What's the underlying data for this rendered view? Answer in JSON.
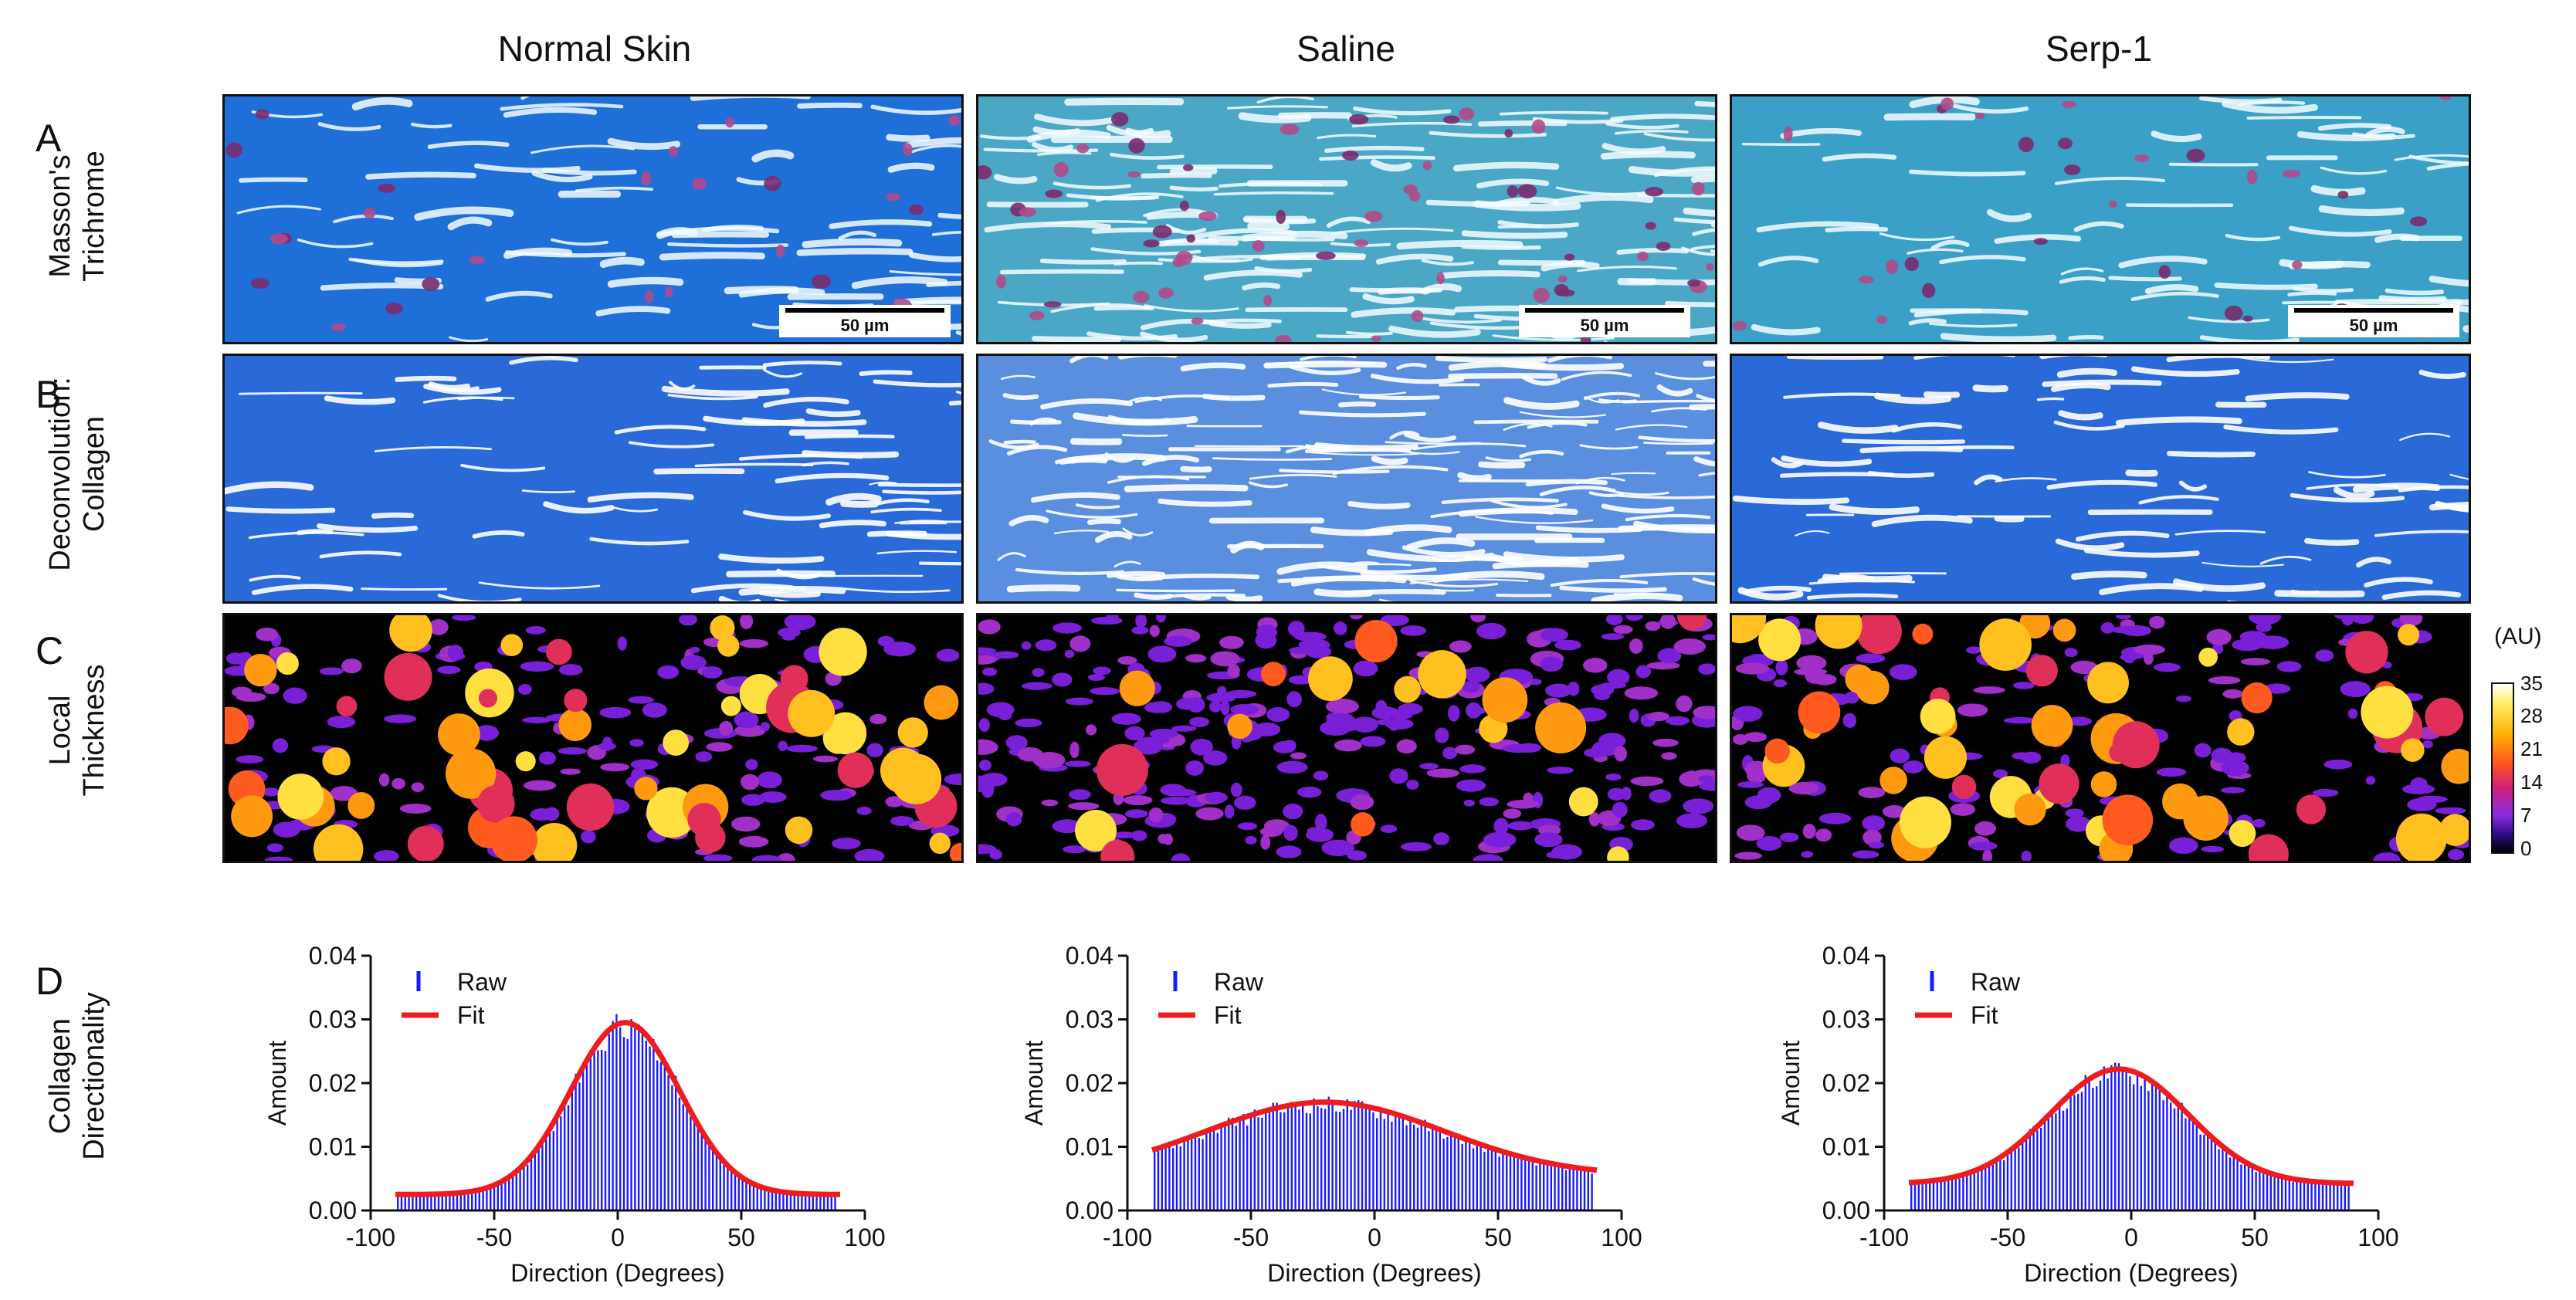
{
  "columns": [
    "Normal Skin",
    "Saline",
    "Serp-1"
  ],
  "rows": [
    {
      "letter": "A",
      "label_lines": [
        "Masson's",
        "Trichrome"
      ]
    },
    {
      "letter": "B",
      "label_lines": [
        "Deconvolution:",
        "Collagen"
      ]
    },
    {
      "letter": "C",
      "label_lines": [
        "Local",
        "Thickness"
      ]
    },
    {
      "letter": "D",
      "label_lines": [
        "Collagen",
        "Directionality"
      ]
    }
  ],
  "scale_bar": "50 µm",
  "colorbar": {
    "title": "(AU)",
    "ticks": [
      "35",
      "28",
      "21",
      "14",
      "7",
      "0"
    ]
  },
  "colors": {
    "trichrome_bg": "#3aa3d8",
    "collagen_bg": "#1f63d6",
    "raw": "#1a1aff",
    "fit": "#ee1c1c"
  },
  "chart_data": [
    {
      "type": "bar",
      "title": "Normal Skin",
      "xlabel": "Direction (Degrees)",
      "ylabel": "Amount",
      "xlim": [
        -100,
        100
      ],
      "ylim": [
        0,
        0.04
      ],
      "xticks": [
        -100,
        -50,
        0,
        50,
        100
      ],
      "yticks": [
        "0.00",
        "0.01",
        "0.02",
        "0.03",
        "0.04"
      ],
      "legend": [
        "Raw",
        "Fit"
      ],
      "fit": {
        "baseline": 0.0025,
        "amplitude": 0.027,
        "center": 3,
        "sigma": 22
      }
    },
    {
      "type": "bar",
      "title": "Saline",
      "xlabel": "Direction (Degrees)",
      "ylabel": "Amount",
      "xlim": [
        -100,
        100
      ],
      "ylim": [
        0,
        0.04
      ],
      "xticks": [
        -100,
        -50,
        0,
        50,
        100
      ],
      "yticks": [
        "0.00",
        "0.01",
        "0.02",
        "0.03",
        "0.04"
      ],
      "legend": [
        "Raw",
        "Fit"
      ],
      "fit": {
        "baseline": 0.0055,
        "amplitude": 0.0115,
        "center": -20,
        "sigma": 48
      }
    },
    {
      "type": "bar",
      "title": "Serp-1",
      "xlabel": "Direction (Degrees)",
      "ylabel": "Amount",
      "xlim": [
        -100,
        100
      ],
      "ylim": [
        0,
        0.04
      ],
      "xticks": [
        -100,
        -50,
        0,
        50,
        100
      ],
      "yticks": [
        "0.00",
        "0.01",
        "0.02",
        "0.03",
        "0.04"
      ],
      "legend": [
        "Raw",
        "Fit"
      ],
      "fit": {
        "baseline": 0.0042,
        "amplitude": 0.018,
        "center": -5,
        "sigma": 28
      }
    }
  ]
}
